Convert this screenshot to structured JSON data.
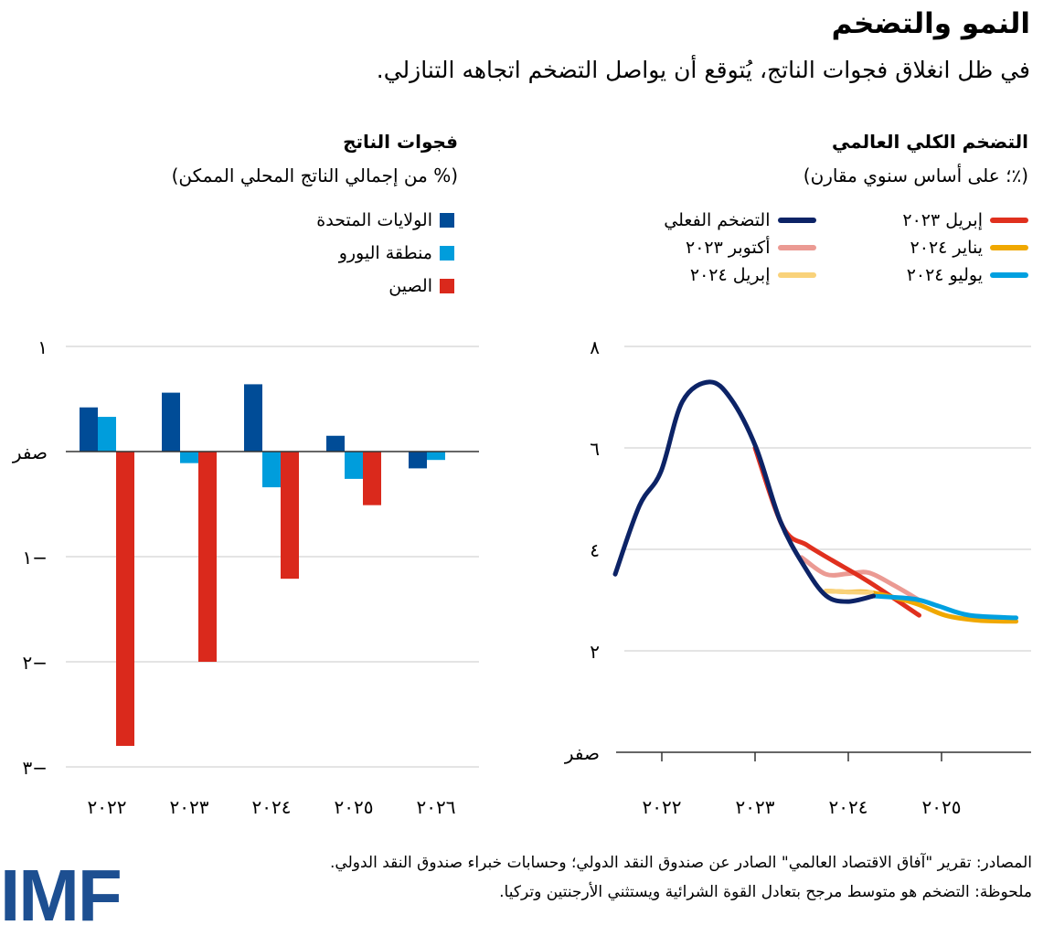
{
  "header": {
    "title": "النمو والتضخم",
    "subtitle": "في ظل انغلاق فجوات الناتج، يُتوقع أن يواصل التضخم اتجاهه التنازلي."
  },
  "chart_data": [
    {
      "type": "bar",
      "title": "فجوات الناتج",
      "subtitle": "(% من إجمالي الناتج المحلي الممكن)",
      "categories": [
        "٢٠٢٢",
        "٢٠٢٣",
        "٢٠٢٤",
        "٢٠٢٥",
        "٢٠٢٦"
      ],
      "series": [
        {
          "name": "الولايات المتحدة",
          "color": "#004c97",
          "values": [
            0.42,
            0.56,
            0.64,
            0.15,
            -0.16
          ]
        },
        {
          "name": "منطقة اليورو",
          "color": "#009ddc",
          "values": [
            0.33,
            -0.11,
            -0.34,
            -0.26,
            -0.08
          ]
        },
        {
          "name": "الصين",
          "color": "#da291c",
          "values": [
            -2.8,
            -2.0,
            -1.21,
            -0.51,
            null
          ]
        }
      ],
      "ylim": [
        -3,
        1
      ],
      "yticks": [
        {
          "value": 1,
          "label": "١"
        },
        {
          "value": 0,
          "label": "صفر"
        },
        {
          "value": -1,
          "label": "١−"
        },
        {
          "value": -2,
          "label": "٢−"
        },
        {
          "value": -3,
          "label": "٣−"
        }
      ],
      "grid": true,
      "legend": "top-right"
    },
    {
      "type": "line",
      "title": "التضخم الكلي العالمي",
      "subtitle": "(٪؛ على أساس سنوي مقارن)",
      "ylim": [
        0,
        8
      ],
      "xlim": [
        2021.5,
        2025.8
      ],
      "yticks": [
        {
          "value": 8,
          "label": "٨"
        },
        {
          "value": 6,
          "label": "٦"
        },
        {
          "value": 4,
          "label": "٤"
        },
        {
          "value": 2,
          "label": "٢"
        },
        {
          "value": 0,
          "label": "صفر"
        }
      ],
      "xticks": [
        {
          "value": 2022,
          "label": "٢٠٢٢"
        },
        {
          "value": 2023,
          "label": "٢٠٢٣"
        },
        {
          "value": 2024,
          "label": "٢٠٢٤"
        },
        {
          "value": 2025,
          "label": "٢٠٢٥"
        }
      ],
      "grid": true,
      "legend": "top",
      "series": [
        {
          "name": "إبريل ٢٠٢٣",
          "color": "#e0301e",
          "x": [
            2023.0,
            2023.3,
            2023.56,
            2023.83,
            2024.22,
            2024.76
          ],
          "y": [
            6.0,
            4.44,
            4.08,
            3.78,
            3.36,
            2.7
          ]
        },
        {
          "name": "أكتوبر ٢٠٢٣",
          "color": "#eb9a93",
          "x": [
            2023.5,
            2023.76,
            2024.0,
            2024.22,
            2024.48,
            2024.76
          ],
          "y": [
            3.84,
            3.51,
            3.52,
            3.54,
            3.3,
            3.0
          ]
        },
        {
          "name": "إبريل ٢٠٢٤",
          "color": "#f9d27a",
          "x": [
            2023.76,
            2024.0,
            2024.25
          ],
          "y": [
            3.18,
            3.16,
            3.15
          ]
        },
        {
          "name": "يناير ٢٠٢٤",
          "color": "#f0a800",
          "x": [
            2023.76,
            2024.0,
            2024.25,
            2024.71,
            2025.04,
            2025.4,
            2025.8
          ],
          "y": [
            3.18,
            3.16,
            3.15,
            2.94,
            2.7,
            2.6,
            2.58
          ]
        },
        {
          "name": "يوليو ٢٠٢٤",
          "color": "#00a0e0",
          "x": [
            2024.27,
            2024.71,
            2024.97,
            2025.3,
            2025.8
          ],
          "y": [
            3.08,
            3.02,
            2.88,
            2.7,
            2.65
          ]
        },
        {
          "name": "التضخم الفعلي",
          "color": "#0c2366",
          "x": [
            2021.5,
            2021.76,
            2021.99,
            2022.22,
            2022.51,
            2022.74,
            2023.01,
            2023.27,
            2023.53,
            2023.76,
            2023.99,
            2024.27
          ],
          "y": [
            3.51,
            4.86,
            5.53,
            6.91,
            7.3,
            6.97,
            6.01,
            4.56,
            3.66,
            3.09,
            2.97,
            3.08
          ]
        }
      ],
      "legend_order": [
        5,
        0,
        1,
        3,
        2,
        4
      ]
    }
  ],
  "footer": {
    "sources": "المصادر: تقرير \"آفاق الاقتصاد العالمي\" الصادر عن صندوق النقد الدولي؛ وحسابات خبراء صندوق النقد الدولي.",
    "note": "ملحوظة: التضخم هو متوسط مرجح بتعادل القوة الشرائية ويستثني الأرجنتين وتركيا."
  },
  "logo": {
    "text": "IMF",
    "color": "#1d4f91"
  }
}
